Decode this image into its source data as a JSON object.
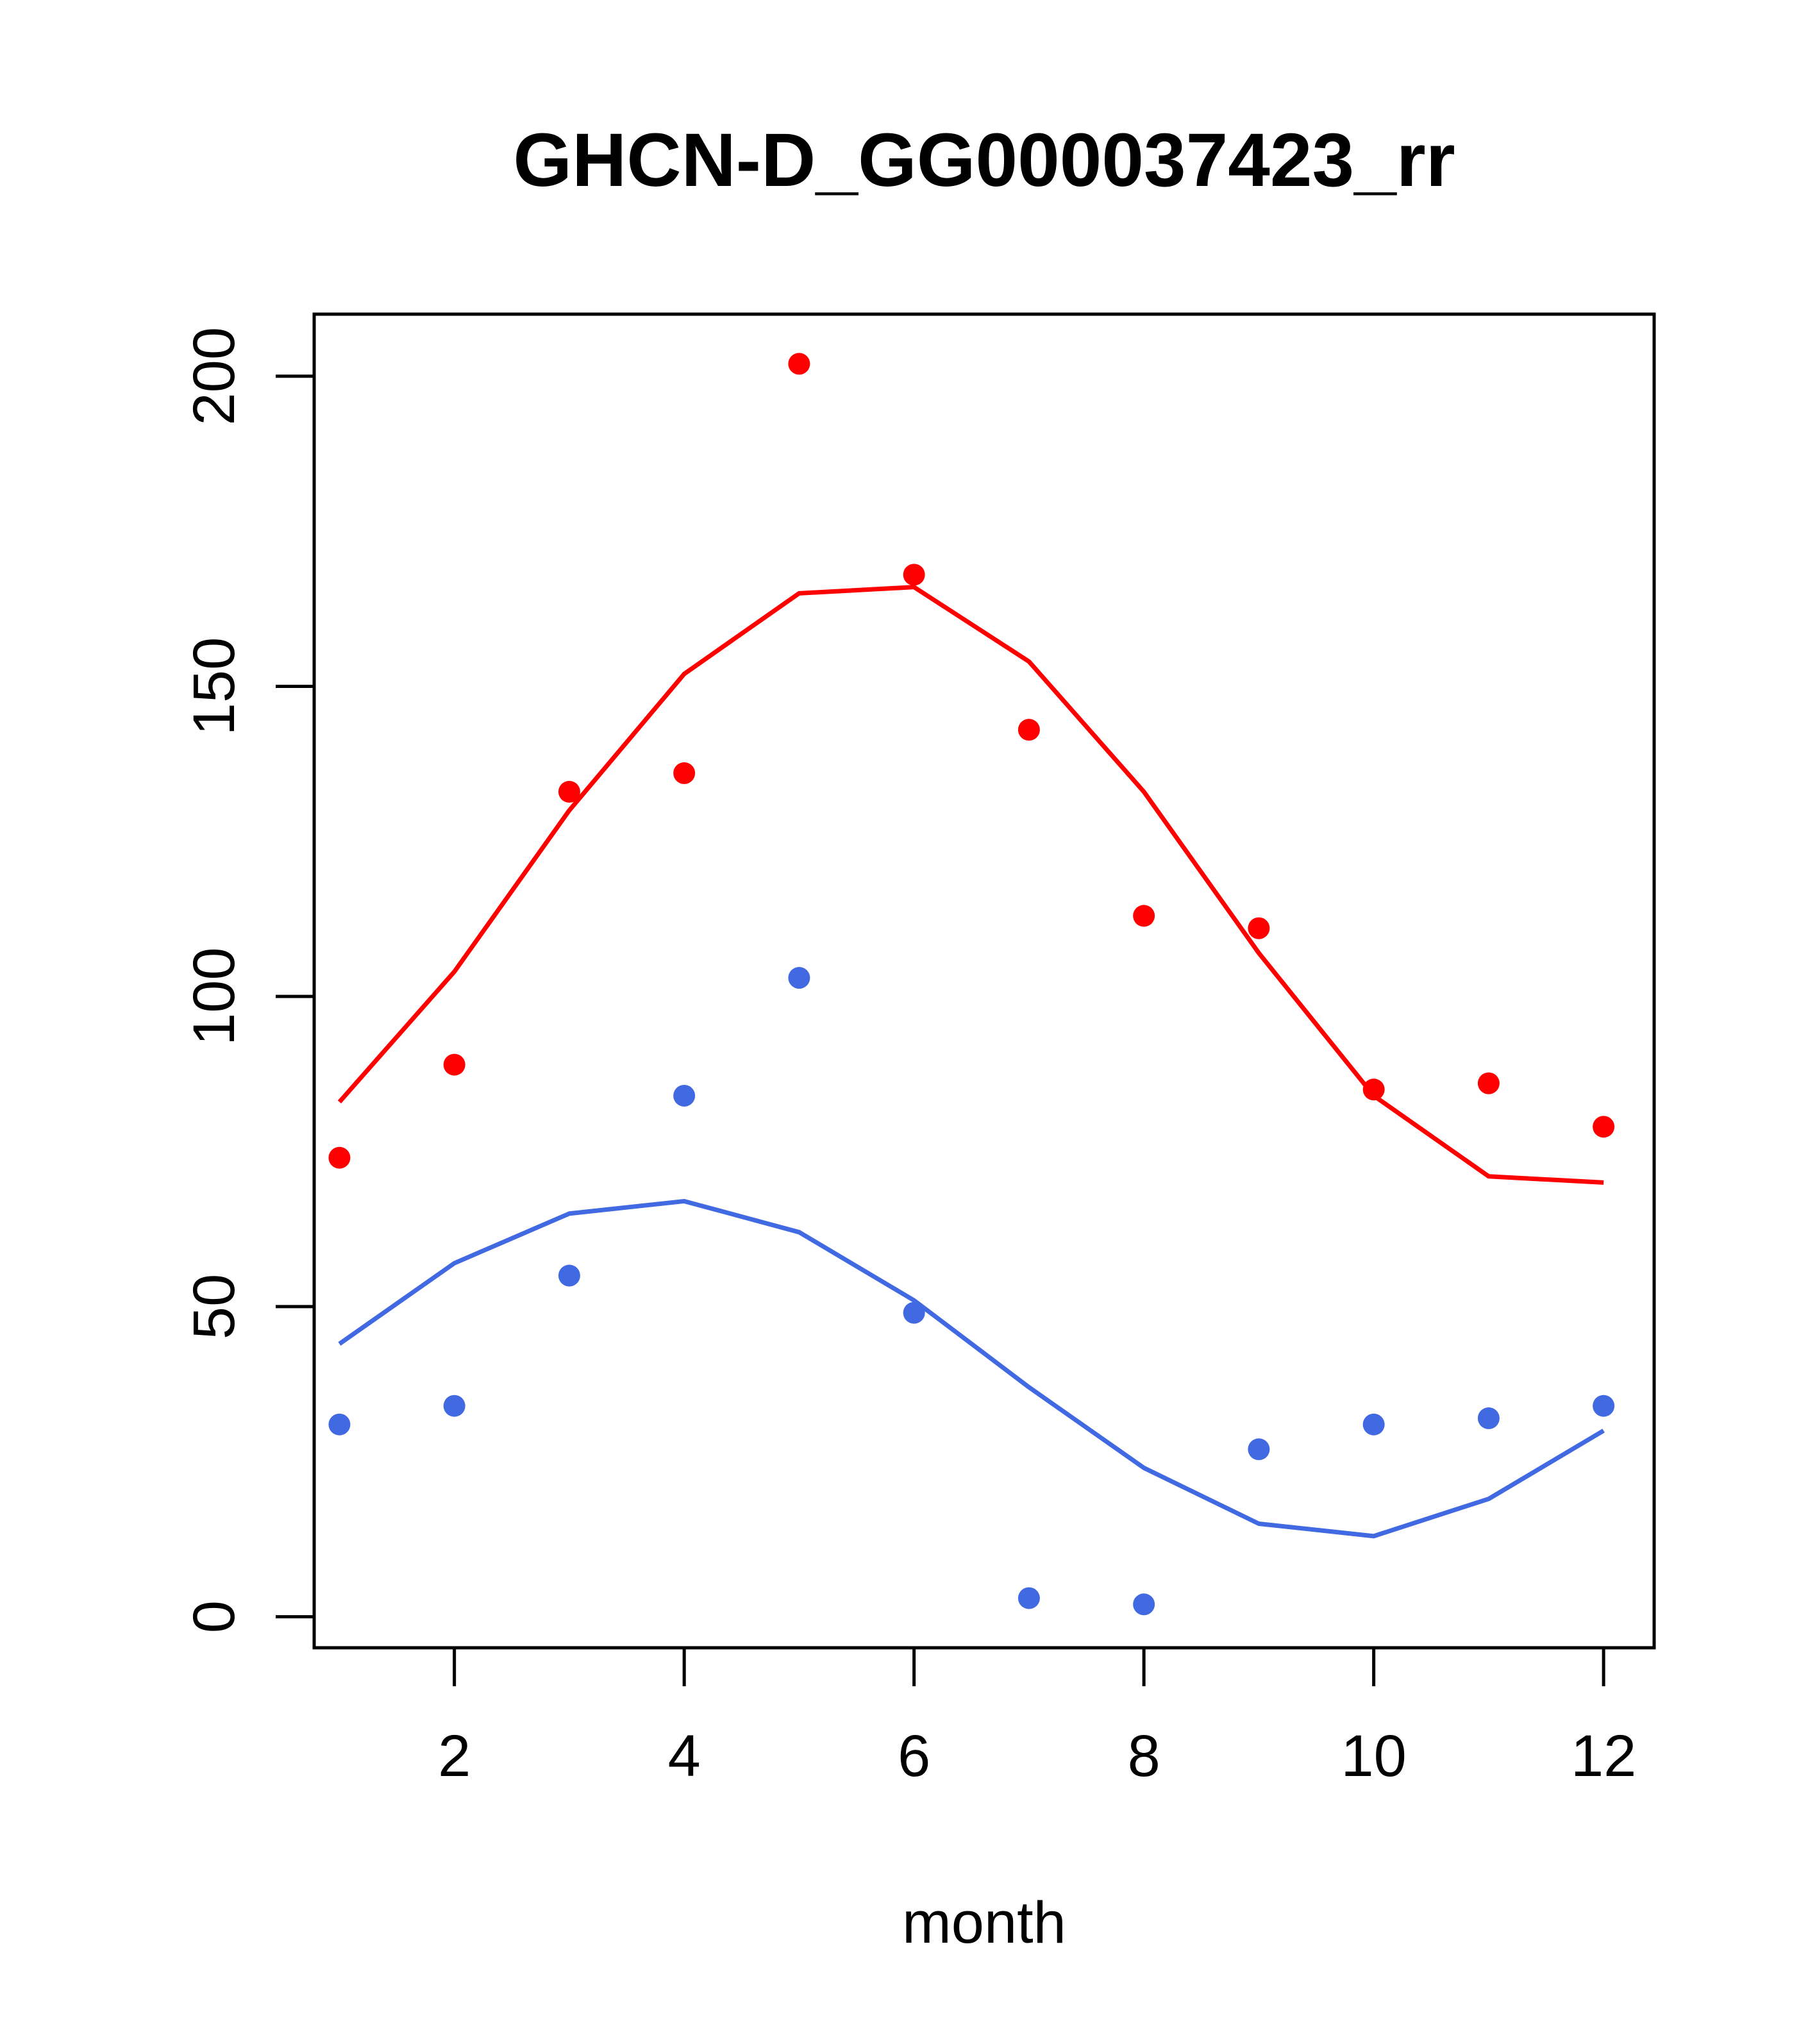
{
  "chart_data": {
    "type": "scatter",
    "title": "GHCN-D_GG000037423_rr",
    "xlabel": "month",
    "ylabel": "",
    "xlim": [
      0.78,
      12.44
    ],
    "ylim": [
      -5,
      210
    ],
    "x_ticks": [
      2,
      4,
      6,
      8,
      10,
      12
    ],
    "y_ticks": [
      0,
      50,
      100,
      150,
      200
    ],
    "grid": false,
    "legend": "none",
    "x": [
      1,
      2,
      3,
      4,
      5,
      6,
      7,
      8,
      9,
      10,
      11,
      12
    ],
    "series": [
      {
        "color": "#ff0000",
        "points": [
          74,
          89,
          133,
          136,
          202,
          168,
          143,
          113,
          111,
          85,
          86,
          79
        ],
        "line": [
          83,
          104,
          130,
          152,
          165,
          166,
          154,
          133,
          107,
          84,
          71,
          70
        ]
      },
      {
        "color": "#4169e1",
        "points": [
          31,
          34,
          55,
          84,
          103,
          49,
          3,
          2,
          27,
          31,
          32,
          34
        ],
        "line": [
          44,
          57,
          65,
          67,
          62,
          51,
          37,
          24,
          15,
          13,
          19,
          30
        ]
      }
    ]
  }
}
